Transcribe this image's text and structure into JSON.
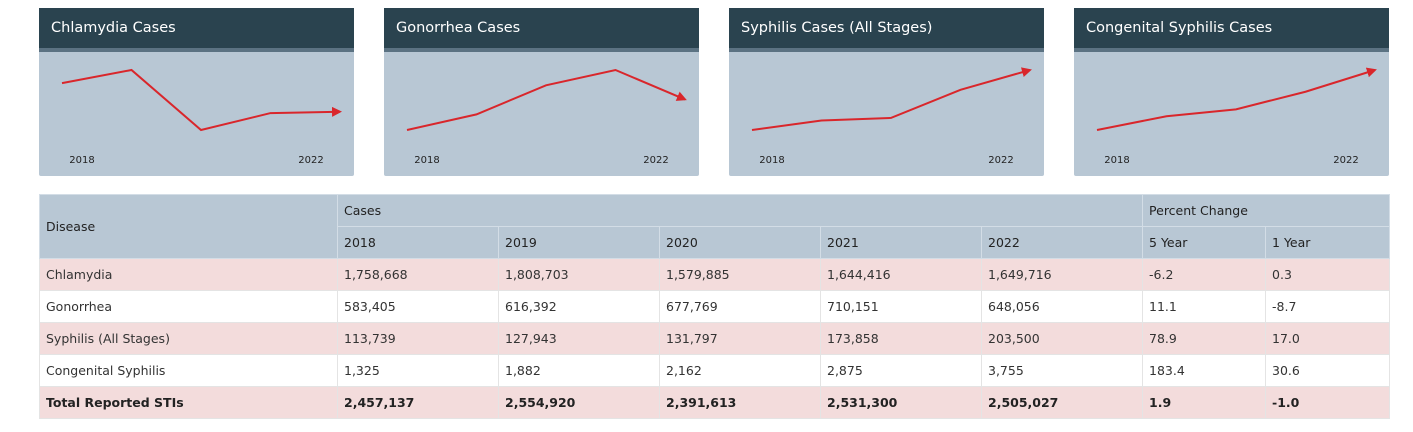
{
  "chart_data": [
    {
      "type": "line",
      "title": "Chlamydia Cases",
      "categories": [
        "2018",
        null,
        null,
        null,
        "2022"
      ],
      "values": [
        1758668,
        1808703,
        1579885,
        1644416,
        1649716
      ],
      "color": "#d9262b"
    },
    {
      "type": "line",
      "title": "Gonorrhea Cases",
      "categories": [
        "2018",
        null,
        null,
        null,
        "2022"
      ],
      "values": [
        583405,
        616392,
        677769,
        710151,
        648056
      ],
      "color": "#d9262b"
    },
    {
      "type": "line",
      "title": "Syphilis Cases (All Stages)",
      "categories": [
        "2018",
        null,
        null,
        null,
        "2022"
      ],
      "values": [
        113739,
        127943,
        131797,
        173858,
        203500
      ],
      "color": "#d9262b"
    },
    {
      "type": "line",
      "title": "Congenital Syphilis Cases",
      "categories": [
        "2018",
        null,
        null,
        null,
        "2022"
      ],
      "values": [
        1325,
        1882,
        2162,
        2875,
        3755
      ],
      "color": "#d9262b"
    }
  ],
  "table": {
    "header_top": [
      "Disease",
      "Cases",
      "Percent Change"
    ],
    "header_sub": [
      "2018",
      "2019",
      "2020",
      "2021",
      "2022",
      "5 Year",
      "1 Year"
    ],
    "rows": [
      [
        "Chlamydia",
        "1,758,668",
        "1,808,703",
        "1,579,885",
        "1,644,416",
        "1,649,716",
        "-6.2",
        "0.3"
      ],
      [
        "Gonorrhea",
        "583,405",
        "616,392",
        "677,769",
        "710,151",
        "648,056",
        "11.1",
        "-8.7"
      ],
      [
        "Syphilis (All Stages)",
        "113,739",
        "127,943",
        "131,797",
        "173,858",
        "203,500",
        "78.9",
        "17.0"
      ],
      [
        "Congenital Syphilis",
        "1,325",
        "1,882",
        "2,162",
        "2,875",
        "3,755",
        "183.4",
        "30.6"
      ],
      [
        "Total Reported STIs",
        "2,457,137",
        "2,554,920",
        "2,391,613",
        "2,531,300",
        "2,505,027",
        "1.9",
        "-1.0"
      ]
    ]
  }
}
